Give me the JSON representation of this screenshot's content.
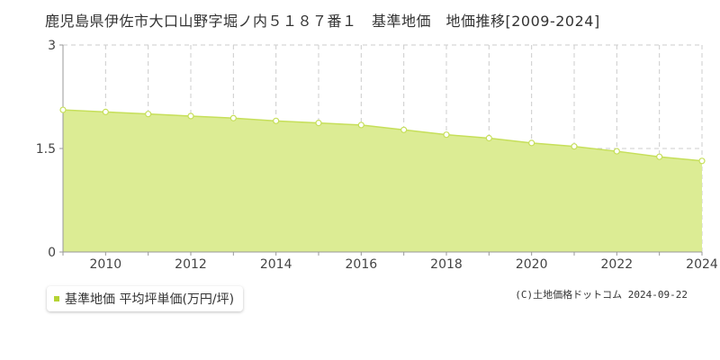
{
  "title": "鹿児島県伊佐市大口山野字堀ノ内５１８７番１　基準地価　地価推移[2009-2024]",
  "legend": {
    "label": "基準地価 平均坪単価(万円/坪)"
  },
  "credit": "(C)土地価格ドットコム 2024-09-22",
  "colors": {
    "fill": "#dcec94",
    "line": "#c6df5a",
    "grid": "#cccccc",
    "marker_fill": "#ffffff",
    "legend": "#b5d334"
  },
  "chart_data": {
    "type": "area",
    "title": "",
    "xlabel": "",
    "ylabel": "",
    "x": [
      2009,
      2010,
      2011,
      2012,
      2013,
      2014,
      2015,
      2016,
      2017,
      2018,
      2019,
      2020,
      2021,
      2022,
      2023,
      2024
    ],
    "series": [
      {
        "values": [
          2.06,
          2.03,
          2.0,
          1.97,
          1.94,
          1.9,
          1.87,
          1.84,
          1.77,
          1.7,
          1.65,
          1.58,
          1.53,
          1.46,
          1.38,
          1.32
        ]
      }
    ],
    "xlim": [
      2009,
      2024
    ],
    "ylim": [
      0,
      3
    ],
    "yticks": [
      "0",
      "1.5",
      "3"
    ],
    "xticks": [
      "2010",
      "2012",
      "2014",
      "2016",
      "2018",
      "2020",
      "2022",
      "2024"
    ],
    "grid": true
  }
}
